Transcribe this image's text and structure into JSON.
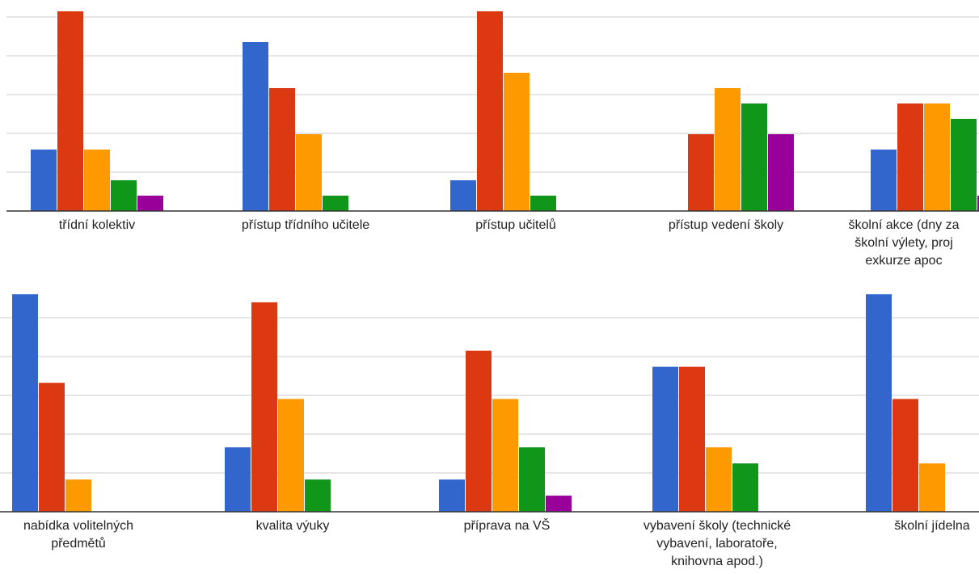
{
  "chart_data": [
    {
      "type": "bar",
      "title": "",
      "xlabel": "",
      "ylabel": "",
      "ylim": [
        0,
        13
      ],
      "grid": true,
      "legend": "none",
      "categories": [
        "třídní kolektiv",
        "přístup třídního učitele",
        "přístup učitelů",
        "přístup vedení školy",
        "školní akce (dny za školní výlety, proj exkurze apoc"
      ],
      "category_lines": [
        [
          "třídní kolektiv"
        ],
        [
          "přístup třídního učitele"
        ],
        [
          "přístup učitelů"
        ],
        [
          "přístup vedení školy"
        ],
        [
          "školní akce (dny za",
          "školní výlety, proj",
          "exkurze apoc"
        ]
      ],
      "series": [
        {
          "color": "#3366cc",
          "values": [
            4,
            11,
            2,
            0,
            4
          ]
        },
        {
          "color": "#dc3912",
          "values": [
            13,
            8,
            13,
            5,
            7
          ]
        },
        {
          "color": "#ff9900",
          "values": [
            4,
            5,
            9,
            8,
            7
          ]
        },
        {
          "color": "#109618",
          "values": [
            2,
            1,
            1,
            7,
            6
          ]
        },
        {
          "color": "#990099",
          "values": [
            1,
            0,
            0,
            5,
            1
          ]
        }
      ]
    },
    {
      "type": "bar",
      "title": "",
      "xlabel": "",
      "ylabel": "",
      "ylim": [
        0,
        13.5
      ],
      "grid": true,
      "legend": "none",
      "categories": [
        "nabídka volitelných předmětů",
        "kvalita výuky",
        "příprava na VŠ",
        "vybavení školy (technické vybavení, laboratoře, knihovna apod.)",
        "školní jídelna"
      ],
      "category_lines": [
        [
          "nabídka volitelných",
          "předmětů"
        ],
        [
          "kvalita výuky"
        ],
        [
          "příprava na VŠ"
        ],
        [
          "vybavení školy (technické",
          "vybavení, laboratoře,",
          "knihovna apod.)"
        ],
        [
          "školní jídelna"
        ]
      ],
      "series": [
        {
          "color": "#3366cc",
          "values": [
            13.5,
            4,
            2,
            9,
            13.5
          ]
        },
        {
          "color": "#dc3912",
          "values": [
            8,
            13,
            10,
            9,
            7
          ]
        },
        {
          "color": "#ff9900",
          "values": [
            2,
            7,
            7,
            4,
            3
          ]
        },
        {
          "color": "#109618",
          "values": [
            0,
            2,
            4,
            3,
            0
          ]
        },
        {
          "color": "#990099",
          "values": [
            0,
            0,
            1,
            0,
            0
          ]
        }
      ]
    }
  ]
}
